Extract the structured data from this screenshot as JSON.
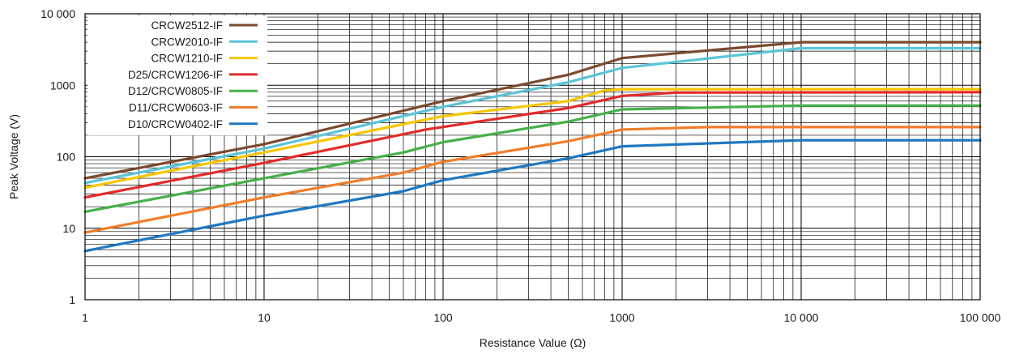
{
  "chart_data": {
    "type": "line",
    "title": "",
    "xlabel": "Resistance Value (Ω)",
    "ylabel": "Peak Voltage (V)",
    "xscale": "log",
    "yscale": "log",
    "xlim": [
      1,
      100000
    ],
    "ylim": [
      1,
      10000
    ],
    "grid": true,
    "legend_position": "top-left",
    "x_ticks": [
      {
        "value": 1,
        "label": "1"
      },
      {
        "value": 10,
        "label": "10"
      },
      {
        "value": 100,
        "label": "100"
      },
      {
        "value": 1000,
        "label": "1000"
      },
      {
        "value": 10000,
        "label": "10 000"
      },
      {
        "value": 100000,
        "label": "100 000"
      }
    ],
    "y_ticks": [
      {
        "value": 1,
        "label": "1"
      },
      {
        "value": 10,
        "label": "10"
      },
      {
        "value": 100,
        "label": "100"
      },
      {
        "value": 1000,
        "label": "1000"
      },
      {
        "value": 10000,
        "label": "10 000"
      }
    ],
    "series": [
      {
        "name": "CRCW2512-IF",
        "color": "#7a4a2e",
        "points": [
          [
            1,
            50
          ],
          [
            10,
            150
          ],
          [
            100,
            600
          ],
          [
            500,
            1400
          ],
          [
            1000,
            2400
          ],
          [
            10000,
            4000
          ],
          [
            100000,
            4000
          ]
        ]
      },
      {
        "name": "CRCW2010-IF",
        "color": "#5bc4d8",
        "points": [
          [
            1,
            43
          ],
          [
            10,
            130
          ],
          [
            100,
            500
          ],
          [
            500,
            1100
          ],
          [
            1000,
            1750
          ],
          [
            10000,
            3300
          ],
          [
            100000,
            3300
          ]
        ]
      },
      {
        "name": "CRCW1210-IF",
        "color": "#f7c600",
        "points": [
          [
            1,
            37
          ],
          [
            10,
            115
          ],
          [
            100,
            370
          ],
          [
            500,
            600
          ],
          [
            800,
            850
          ],
          [
            1000,
            880
          ],
          [
            100000,
            880
          ]
        ]
      },
      {
        "name": "D25/CRCW1206-IF",
        "color": "#e32b2b",
        "points": [
          [
            1,
            27
          ],
          [
            10,
            82
          ],
          [
            80,
            240
          ],
          [
            500,
            480
          ],
          [
            1000,
            710
          ],
          [
            2000,
            790
          ],
          [
            100000,
            800
          ]
        ]
      },
      {
        "name": "D12/CRCW0805-IF",
        "color": "#46b04a",
        "points": [
          [
            1,
            17
          ],
          [
            10,
            50
          ],
          [
            60,
            115
          ],
          [
            100,
            160
          ],
          [
            500,
            310
          ],
          [
            1000,
            460
          ],
          [
            10000,
            520
          ],
          [
            100000,
            520
          ]
        ]
      },
      {
        "name": "D11/CRCW0603-IF",
        "color": "#f07e2a",
        "points": [
          [
            1,
            8.7
          ],
          [
            10,
            27
          ],
          [
            60,
            60
          ],
          [
            100,
            85
          ],
          [
            500,
            165
          ],
          [
            1000,
            240
          ],
          [
            3000,
            260
          ],
          [
            100000,
            260
          ]
        ]
      },
      {
        "name": "D10/CRCW0402-IF",
        "color": "#1f78c1",
        "points": [
          [
            1,
            4.8
          ],
          [
            10,
            15
          ],
          [
            60,
            33
          ],
          [
            100,
            47
          ],
          [
            500,
            95
          ],
          [
            1000,
            140
          ],
          [
            10000,
            170
          ],
          [
            100000,
            170
          ]
        ]
      }
    ]
  }
}
